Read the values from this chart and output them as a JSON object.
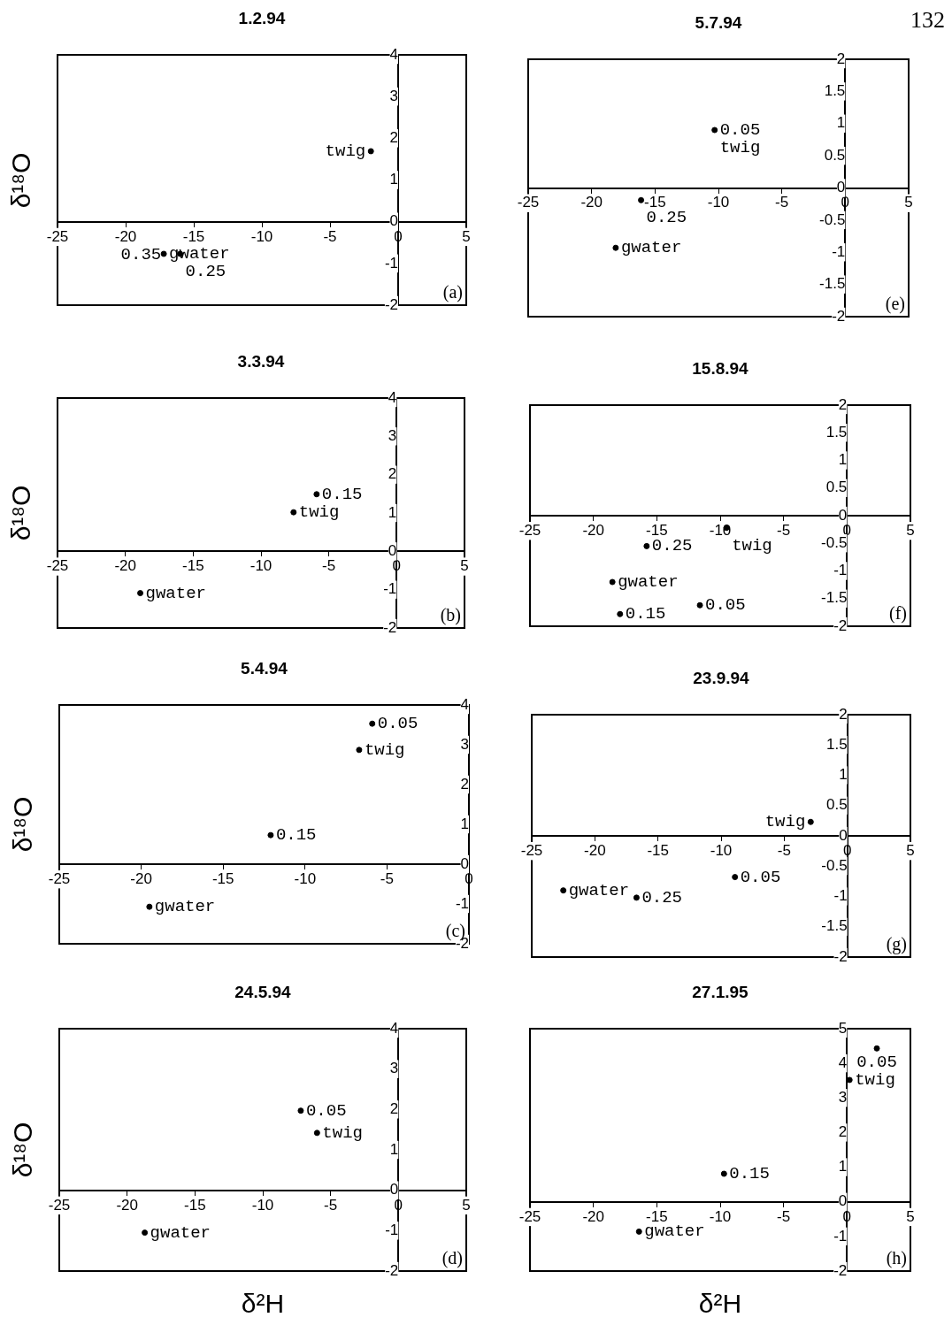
{
  "chart_data": [
    {
      "type": "scatter",
      "title": "1.2.94",
      "ylabel": "δ¹⁸O",
      "xlim": [
        -25,
        5
      ],
      "ylim": [
        -2,
        4
      ],
      "xticks": [
        -25,
        -20,
        -15,
        -10,
        -5,
        0,
        5
      ],
      "yticks": [
        -2,
        -1,
        0,
        1,
        2,
        3,
        4
      ],
      "marker": "circle",
      "grid": false,
      "legend": false,
      "series": [
        {
          "color": "#000000",
          "x": [
            -2.0,
            -17.2,
            -16.0
          ],
          "values": [
            1.69,
            -0.77,
            -0.77
          ]
        }
      ],
      "annotations": [
        "(a)",
        {
          "text": "twig",
          "x": -2.0,
          "y": 1.69
        },
        {
          "text": "gwater",
          "x": -17.2,
          "y": -0.77
        },
        {
          "text": "0.25",
          "x": -16.0,
          "y": -0.77
        },
        {
          "text": "0.35",
          "x": -17.0,
          "y": -0.8
        }
      ]
    },
    {
      "type": "scatter",
      "title": "5.7.94",
      "xlim": [
        -25,
        5
      ],
      "ylim": [
        -2,
        2
      ],
      "xticks": [
        -25,
        -20,
        -15,
        -10,
        -5,
        0,
        5
      ],
      "yticks": [
        -2,
        -1.5,
        -1,
        -0.5,
        0,
        0.5,
        1,
        1.5,
        2
      ],
      "marker": "circle",
      "grid": false,
      "legend": false,
      "series": [
        {
          "color": "#000000",
          "x": [
            -10.3,
            -16.1,
            -18.1
          ],
          "values": [
            0.9,
            -0.19,
            -0.93
          ]
        }
      ],
      "annotations": [
        "(e)",
        "132",
        {
          "text": "0.05",
          "x": -10.3,
          "y": 0.9
        },
        {
          "text": "twig",
          "x": -10.3,
          "y": 0.9
        },
        {
          "text": "0.25",
          "x": -16.1,
          "y": -0.19
        },
        {
          "text": "gwater",
          "x": -18.1,
          "y": -0.93
        }
      ]
    },
    {
      "type": "scatter",
      "title": "3.3.94",
      "ylabel": "δ¹⁸O",
      "xlim": [
        -25,
        5
      ],
      "ylim": [
        -2,
        4
      ],
      "xticks": [
        -25,
        -20,
        -15,
        -10,
        -5,
        0,
        5
      ],
      "yticks": [
        -2,
        -1,
        0,
        1,
        2,
        3,
        4
      ],
      "marker": "circle",
      "grid": false,
      "legend": false,
      "series": [
        {
          "color": "#000000",
          "x": [
            -5.9,
            -7.6,
            -18.9
          ],
          "values": [
            1.49,
            1.02,
            -1.09
          ]
        }
      ],
      "annotations": [
        "(b)",
        {
          "text": "0.15",
          "x": -5.9,
          "y": 1.49
        },
        {
          "text": "twig",
          "x": -7.6,
          "y": 1.02
        },
        {
          "text": "gwater",
          "x": -18.9,
          "y": -1.09
        }
      ]
    },
    {
      "type": "scatter",
      "title": "15.8.94",
      "xlim": [
        -25,
        5
      ],
      "ylim": [
        -2,
        2
      ],
      "xticks": [
        -25,
        -20,
        -15,
        -10,
        -5,
        0,
        5
      ],
      "yticks": [
        -2,
        -1.5,
        -1,
        -0.5,
        0,
        0.5,
        1,
        1.5,
        2
      ],
      "marker": "circle",
      "grid": false,
      "legend": false,
      "series": [
        {
          "color": "#000000",
          "x": [
            -15.8,
            -9.5,
            -18.5,
            -17.9,
            -11.6
          ],
          "values": [
            -0.55,
            -0.22,
            -1.2,
            -1.78,
            -1.62
          ]
        }
      ],
      "annotations": [
        "(f)",
        {
          "text": "0.25",
          "x": -15.8,
          "y": -0.55
        },
        {
          "text": "twig",
          "x": -9.5,
          "y": -0.22
        },
        {
          "text": "gwater",
          "x": -18.5,
          "y": -1.2
        },
        {
          "text": "0.15",
          "x": -17.9,
          "y": -1.78
        },
        {
          "text": "0.05",
          "x": -11.6,
          "y": -1.62
        }
      ]
    },
    {
      "type": "scatter",
      "title": "5.4.94",
      "ylabel": "δ¹⁸O",
      "xlim": [
        -25,
        0
      ],
      "ylim": [
        -2,
        4
      ],
      "xticks": [
        -25,
        -20,
        -15,
        -10,
        -5,
        0
      ],
      "yticks": [
        -2,
        -1,
        0,
        1,
        2,
        3,
        4
      ],
      "marker": "circle",
      "grid": false,
      "legend": false,
      "series": [
        {
          "color": "#000000",
          "x": [
            -5.9,
            -6.7,
            -12.1,
            -19.5
          ],
          "values": [
            3.53,
            2.87,
            0.73,
            -1.07
          ]
        }
      ],
      "annotations": [
        "(c)",
        {
          "text": "0.05",
          "x": -5.9,
          "y": 3.53
        },
        {
          "text": "twig",
          "x": -6.7,
          "y": 2.87
        },
        {
          "text": "0.15",
          "x": -12.1,
          "y": 0.73
        },
        {
          "text": "gwater",
          "x": -19.5,
          "y": -1.07
        }
      ]
    },
    {
      "type": "scatter",
      "title": "23.9.94",
      "xlim": [
        -25,
        5
      ],
      "ylim": [
        -2,
        2
      ],
      "xticks": [
        -25,
        -20,
        -15,
        -10,
        -5,
        0,
        5
      ],
      "yticks": [
        -2,
        -1.5,
        -1,
        -0.5,
        0,
        0.5,
        1,
        1.5,
        2
      ],
      "marker": "circle",
      "grid": false,
      "legend": false,
      "series": [
        {
          "color": "#000000",
          "x": [
            -2.9,
            -22.5,
            -16.7,
            -8.9
          ],
          "values": [
            0.23,
            -0.9,
            -1.02,
            -0.68
          ]
        }
      ],
      "annotations": [
        "(g)",
        {
          "text": "twig",
          "x": -2.9,
          "y": 0.23
        },
        {
          "text": "gwater",
          "x": -22.5,
          "y": -0.9
        },
        {
          "text": "0.25",
          "x": -16.7,
          "y": -1.02
        },
        {
          "text": "0.05",
          "x": -8.9,
          "y": -0.68
        }
      ]
    },
    {
      "type": "scatter",
      "title": "24.5.94",
      "xlabel": "δ²H",
      "ylabel": "δ¹⁸O",
      "xlim": [
        -25,
        5
      ],
      "ylim": [
        -2,
        4
      ],
      "xticks": [
        -25,
        -20,
        -15,
        -10,
        -5,
        0,
        5
      ],
      "yticks": [
        -2,
        -1,
        0,
        1,
        2,
        3,
        4
      ],
      "marker": "circle",
      "grid": false,
      "legend": false,
      "series": [
        {
          "color": "#000000",
          "x": [
            -7.2,
            -6.0,
            -18.7
          ],
          "values": [
            1.97,
            1.42,
            -1.05
          ]
        }
      ],
      "annotations": [
        "(d)",
        {
          "text": "0.05",
          "x": -7.2,
          "y": 1.97
        },
        {
          "text": "twig",
          "x": -6.0,
          "y": 1.42
        },
        {
          "text": "gwater",
          "x": -18.7,
          "y": -1.05
        }
      ]
    },
    {
      "type": "scatter",
      "title": "27.1.95",
      "xlabel": "δ²H",
      "xlim": [
        -25,
        5
      ],
      "ylim": [
        -2,
        5
      ],
      "xticks": [
        -25,
        -20,
        -15,
        -10,
        -5,
        0,
        5
      ],
      "yticks": [
        -2,
        -1,
        0,
        1,
        2,
        3,
        4,
        5
      ],
      "marker": "circle",
      "grid": false,
      "legend": false,
      "series": [
        {
          "color": "#000000",
          "x": [
            2.35,
            0.2,
            -9.7,
            -16.4
          ],
          "values": [
            4.43,
            3.52,
            0.81,
            -0.86
          ]
        }
      ],
      "annotations": [
        "(h)",
        {
          "text": "0.05",
          "x": 2.35,
          "y": 4.43
        },
        {
          "text": "twig",
          "x": 0.2,
          "y": 3.52
        },
        {
          "text": "0.15",
          "x": -9.7,
          "y": 0.81
        },
        {
          "text": "gwater",
          "x": -16.4,
          "y": -0.86
        }
      ]
    }
  ]
}
